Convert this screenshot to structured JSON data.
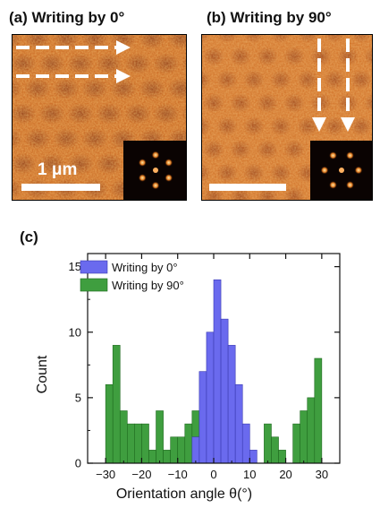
{
  "panels": {
    "a": {
      "label": "(a)",
      "title": "Writing by 0°",
      "scalebar_label": "1 μm"
    },
    "b": {
      "label": "(b)",
      "title": "Writing by 90°"
    },
    "c": {
      "label": "(c)"
    }
  },
  "chart_data": {
    "type": "bar",
    "panel": "(c)",
    "xlabel": "Orientation angle θ(°)",
    "ylabel": "Count",
    "xlim": [
      -35,
      35
    ],
    "ylim": [
      0,
      16
    ],
    "xticks": [
      -30,
      -20,
      -10,
      0,
      10,
      20,
      30
    ],
    "yticks": [
      0,
      5,
      10,
      15
    ],
    "bin_width": 2,
    "grid": false,
    "legend_position": "top-left",
    "x": [
      -29,
      -27,
      -25,
      -23,
      -21,
      -19,
      -17,
      -15,
      -13,
      -11,
      -9,
      -7,
      -5,
      -3,
      -1,
      1,
      3,
      5,
      7,
      9,
      11,
      13,
      15,
      17,
      19,
      21,
      23,
      25,
      27,
      29
    ],
    "series": [
      {
        "name": "Writing by 0°",
        "color": "#6a6aee",
        "values": [
          0,
          0,
          0,
          0,
          0,
          0,
          0,
          0,
          0,
          0,
          0,
          0,
          2,
          7,
          10,
          14,
          11,
          9,
          6,
          3,
          1,
          0,
          0,
          0,
          0,
          0,
          0,
          0,
          0,
          0
        ]
      },
      {
        "name": "Writing by 90°",
        "color": "#3f9e3f",
        "values": [
          6,
          9,
          4,
          3,
          3,
          3,
          1,
          4,
          1,
          2,
          2,
          3,
          4,
          1,
          0,
          0,
          0,
          0,
          1,
          1,
          0,
          0,
          3,
          2,
          1,
          0,
          3,
          4,
          5,
          8
        ]
      }
    ]
  }
}
